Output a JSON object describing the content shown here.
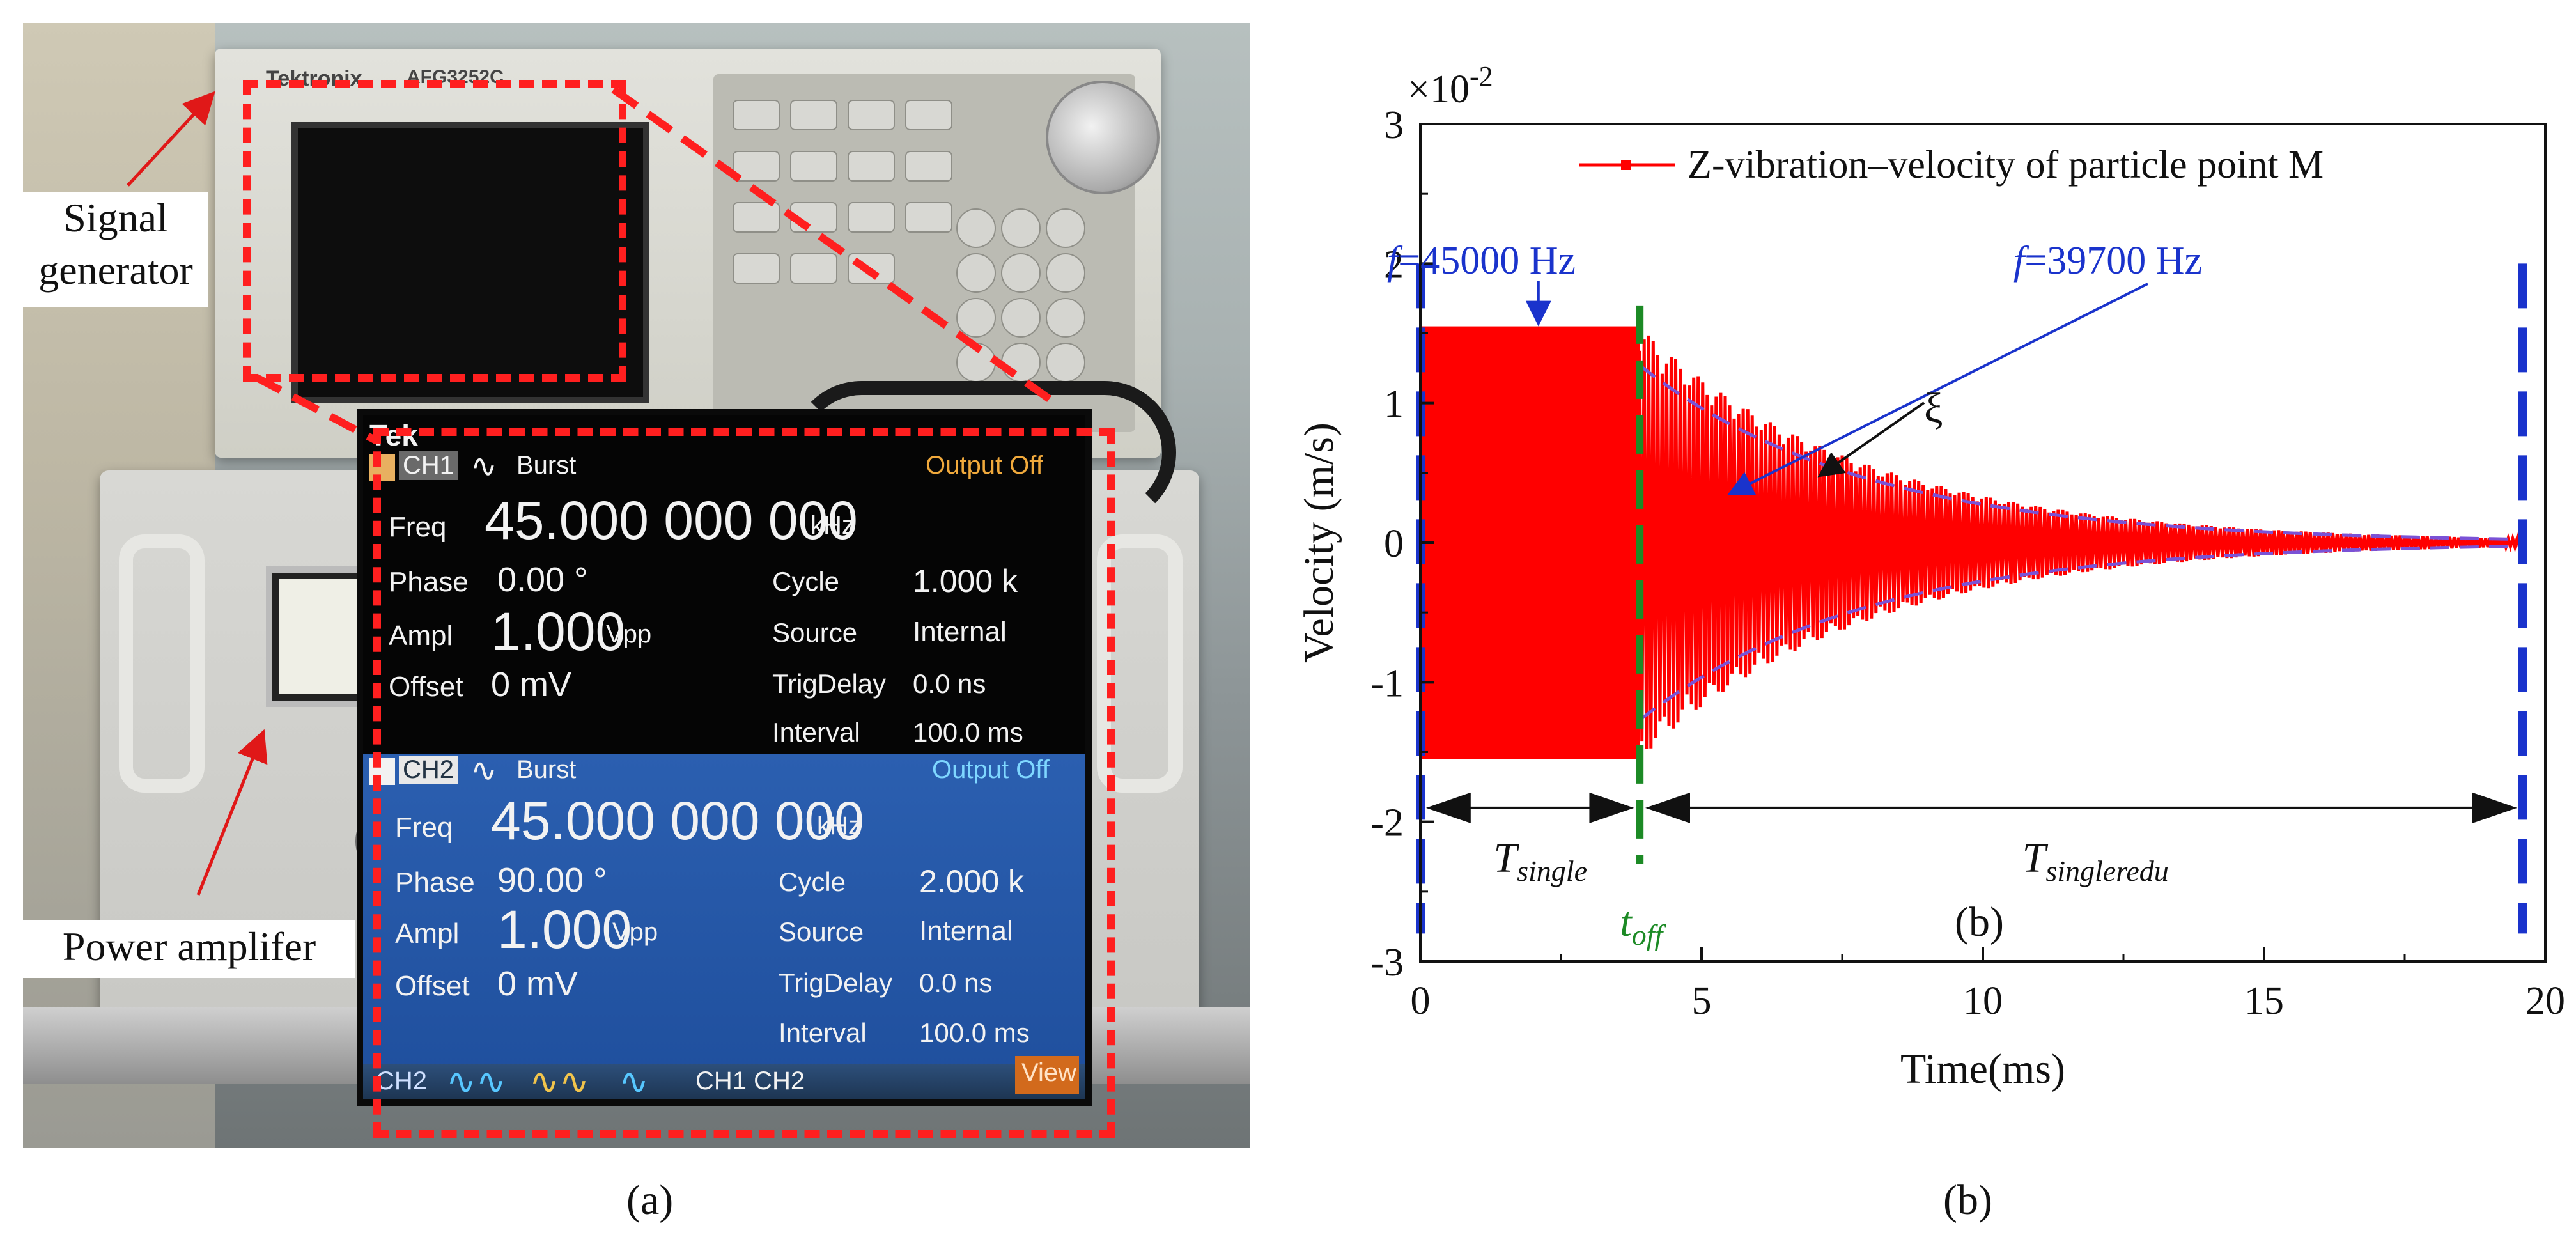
{
  "panel_a": {
    "caption": "(a)",
    "callouts": {
      "signal_generator": [
        "Signal",
        "generator"
      ],
      "power_amplifier": "Power amplifer"
    },
    "device_brand": "Tektronix",
    "device_model": "AFG3252C",
    "zoom_screen": {
      "logo": "Tek",
      "ch1": {
        "tag": "CH1",
        "mode": "Burst",
        "output": "Output Off",
        "freq_label": "Freq",
        "freq_value": "45.000 000 000",
        "freq_unit": "kHz",
        "phase_label": "Phase",
        "phase_value": "0.00 °",
        "ampl_label": "Ampl",
        "ampl_value": "1.000",
        "ampl_unit": "Vpp",
        "offset_label": "Offset",
        "offset_value": "0 mV",
        "cycle_label": "Cycle",
        "cycle_value": "1.000 k",
        "source_label": "Source",
        "source_value": "Internal",
        "trig_label": "TrigDelay",
        "trig_value": "0.0 ns",
        "interval_label": "Interval",
        "interval_value": "100.0 ms"
      },
      "ch2": {
        "tag": "CH2",
        "mode": "Burst",
        "output": "Output Off",
        "freq_label": "Freq",
        "freq_value": "45.000 000 000",
        "freq_unit": "kHz",
        "phase_label": "Phase",
        "phase_value": "90.00 °",
        "ampl_label": "Ampl",
        "ampl_value": "1.000",
        "ampl_unit": "Vpp",
        "offset_label": "Offset",
        "offset_value": "0 mV",
        "cycle_label": "Cycle",
        "cycle_value": "2.000 k",
        "source_label": "Source",
        "source_value": "Internal",
        "trig_label": "TrigDelay",
        "trig_value": "0.0 ns",
        "interval_label": "Interval",
        "interval_value": "100.0 ms"
      },
      "tabs": {
        "ch2": "CH2",
        "ch1_ch2": "CH1  CH2",
        "view": "View"
      }
    }
  },
  "panel_b": {
    "caption": "(b)",
    "inner_label": "(b)"
  },
  "chart_data": {
    "type": "line",
    "xlabel": "Time(ms)",
    "ylabel": "Velocity (m/s)",
    "y_multiplier": "×10-2",
    "xlim": [
      0,
      20
    ],
    "ylim": [
      -3,
      3
    ],
    "xticks": [
      0,
      5,
      10,
      15,
      20
    ],
    "yticks": [
      -3,
      -2,
      -1,
      0,
      1,
      2,
      3
    ],
    "legend": "Z-vibration–velocity of particle point M",
    "legend_placement": "top",
    "series": [
      {
        "name": "Z-vibration–velocity of particle point M",
        "color": "#ff0000",
        "steady_amplitude": 1.55,
        "steady_until_ms": 3.9,
        "decay_end_amplitude": 0.03,
        "end_ms": 19.6
      }
    ],
    "annotations": {
      "f1": "f=45000 Hz",
      "f2": "f=39700 Hz",
      "xi": "ξ",
      "t_single": "single",
      "t_singleredu": "singleredu",
      "t_off": "off"
    },
    "markers": {
      "blue_dashed_x": [
        0,
        19.6
      ],
      "green_dashed_x": 3.9,
      "arrow_row_y": -1.9
    },
    "colors": {
      "signal": "#ff0000",
      "blue": "#1a33cc",
      "green": "#1c8a25",
      "envelope": "#7a52d6"
    }
  }
}
